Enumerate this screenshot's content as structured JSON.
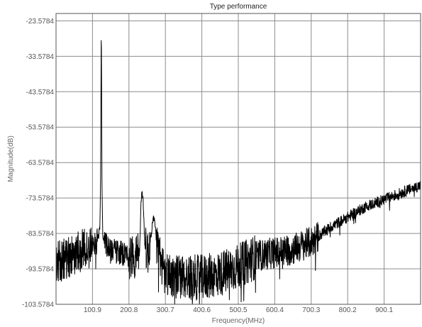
{
  "chart_data": {
    "type": "line",
    "title": "Type performance",
    "xlabel": "Frequency(MHz)",
    "ylabel": "Magnitude(dB)",
    "xlim": [
      1,
      1000
    ],
    "ylim": [
      -103.5784,
      -21.5
    ],
    "xticks": [
      100.9,
      200.8,
      300.7,
      400.6,
      500.5,
      600.4,
      700.3,
      800.2,
      900.1
    ],
    "xtick_labels": [
      "100.9",
      "200.8",
      "300.7",
      "400.6",
      "500.5",
      "600.4",
      "700.3",
      "800.2",
      "900.1"
    ],
    "yticks": [
      -103.5784,
      -93.5784,
      -83.5784,
      -73.5784,
      -63.5784,
      -53.5784,
      -43.5784,
      -33.5784,
      -23.5784
    ],
    "ytick_labels": [
      "-103.5784",
      "-93.5784",
      "-83.5784",
      "-73.5784",
      "-63.5784",
      "-53.5784",
      "-43.5784",
      "-33.5784",
      "-23.5784"
    ],
    "grid": true,
    "series": [
      {
        "x": [
          1,
          20,
          40,
          60,
          80,
          100,
          112,
          118,
          121,
          123,
          125,
          127,
          129,
          135,
          150,
          175,
          200,
          220,
          230,
          234,
          237,
          240,
          245,
          255,
          260,
          265,
          268,
          272,
          280,
          300,
          350,
          400,
          450,
          500,
          550,
          600,
          650,
          700,
          750,
          800,
          850,
          900,
          950,
          1000
        ],
        "y": [
          -92,
          -91,
          -90,
          -89,
          -88,
          -87,
          -86,
          -84,
          -82,
          -70,
          -23.6,
          -70,
          -84,
          -86,
          -88,
          -89,
          -90,
          -90,
          -89,
          -75,
          -71.5,
          -75,
          -88,
          -89,
          -85,
          -81,
          -79,
          -81,
          -89,
          -95,
          -96,
          -96,
          -95,
          -93,
          -90,
          -89,
          -88,
          -86,
          -82,
          -79,
          -76,
          -74,
          -72,
          -70
        ]
      }
    ]
  }
}
